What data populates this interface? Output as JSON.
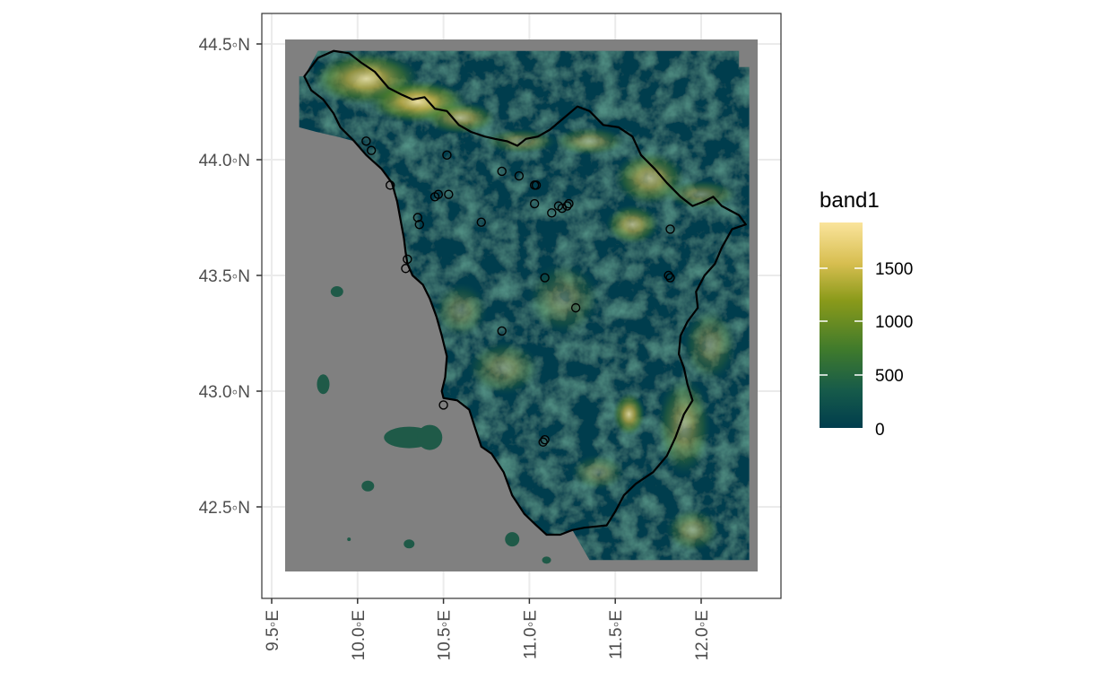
{
  "map": {
    "y_axis": {
      "ticks": [
        {
          "value": 44.5,
          "label": "44.5◦N"
        },
        {
          "value": 44.0,
          "label": "44.0◦N"
        },
        {
          "value": 43.5,
          "label": "43.5◦N"
        },
        {
          "value": 43.0,
          "label": "43.0◦N"
        },
        {
          "value": 42.5,
          "label": "42.5◦N"
        }
      ]
    },
    "x_axis": {
      "ticks": [
        {
          "value": 9.5,
          "label": "9.5◦E"
        },
        {
          "value": 10.0,
          "label": "10.0◦E"
        },
        {
          "value": 10.5,
          "label": "10.5◦E"
        },
        {
          "value": 11.0,
          "label": "11.0◦E"
        },
        {
          "value": 11.5,
          "label": "11.5◦E"
        },
        {
          "value": 12.0,
          "label": "12.0◦E"
        }
      ]
    },
    "legend": {
      "title": "band1",
      "labels": [
        "1500",
        "1000",
        "500",
        "0"
      ],
      "colors": [
        "#fae49c",
        "#d7be50",
        "#8a9a1a",
        "#3f7a2c",
        "#165a4a",
        "#003d4d"
      ]
    },
    "colors": {
      "sea": "#808080",
      "frame": "#333333",
      "grid": "#ebebeb",
      "boundary": "#000000",
      "low": "#003d4d",
      "mid": "#2f7040",
      "high": "#f5e6a8"
    },
    "stations": [
      {
        "lon": 10.05,
        "lat": 44.08
      },
      {
        "lon": 10.08,
        "lat": 44.04
      },
      {
        "lon": 10.19,
        "lat": 43.89
      },
      {
        "lon": 10.47,
        "lat": 43.85
      },
      {
        "lon": 10.45,
        "lat": 43.84
      },
      {
        "lon": 10.53,
        "lat": 43.85
      },
      {
        "lon": 10.52,
        "lat": 44.02
      },
      {
        "lon": 10.35,
        "lat": 43.75
      },
      {
        "lon": 10.36,
        "lat": 43.72
      },
      {
        "lon": 10.72,
        "lat": 43.73
      },
      {
        "lon": 10.84,
        "lat": 43.95
      },
      {
        "lon": 10.94,
        "lat": 43.93
      },
      {
        "lon": 11.03,
        "lat": 43.89
      },
      {
        "lon": 11.04,
        "lat": 43.89
      },
      {
        "lon": 11.03,
        "lat": 43.81
      },
      {
        "lon": 11.13,
        "lat": 43.77
      },
      {
        "lon": 11.17,
        "lat": 43.8
      },
      {
        "lon": 11.19,
        "lat": 43.79
      },
      {
        "lon": 11.22,
        "lat": 43.8
      },
      {
        "lon": 11.23,
        "lat": 43.81
      },
      {
        "lon": 11.09,
        "lat": 43.49
      },
      {
        "lon": 11.27,
        "lat": 43.36
      },
      {
        "lon": 10.84,
        "lat": 43.26
      },
      {
        "lon": 10.29,
        "lat": 43.57
      },
      {
        "lon": 10.28,
        "lat": 43.53
      },
      {
        "lon": 11.82,
        "lat": 43.7
      },
      {
        "lon": 11.81,
        "lat": 43.5
      },
      {
        "lon": 11.82,
        "lat": 43.49
      },
      {
        "lon": 10.5,
        "lat": 42.94
      },
      {
        "lon": 11.09,
        "lat": 42.79
      },
      {
        "lon": 11.08,
        "lat": 42.78
      }
    ],
    "boundary": [
      [
        9.69,
        44.36
      ],
      [
        9.77,
        44.44
      ],
      [
        9.86,
        44.47
      ],
      [
        9.95,
        44.46
      ],
      [
        10.02,
        44.42
      ],
      [
        10.1,
        44.38
      ],
      [
        10.18,
        44.31
      ],
      [
        10.26,
        44.28
      ],
      [
        10.32,
        44.26
      ],
      [
        10.39,
        44.27
      ],
      [
        10.45,
        44.22
      ],
      [
        10.52,
        44.21
      ],
      [
        10.59,
        44.15
      ],
      [
        10.66,
        44.12
      ],
      [
        10.74,
        44.1
      ],
      [
        10.8,
        44.09
      ],
      [
        10.87,
        44.08
      ],
      [
        10.93,
        44.06
      ],
      [
        10.98,
        44.09
      ],
      [
        11.05,
        44.1
      ],
      [
        11.12,
        44.13
      ],
      [
        11.2,
        44.18
      ],
      [
        11.28,
        44.23
      ],
      [
        11.35,
        44.21
      ],
      [
        11.43,
        44.15
      ],
      [
        11.52,
        44.14
      ],
      [
        11.6,
        44.1
      ],
      [
        11.65,
        44.02
      ],
      [
        11.73,
        43.96
      ],
      [
        11.8,
        43.9
      ],
      [
        11.88,
        43.84
      ],
      [
        11.95,
        43.8
      ],
      [
        12.02,
        43.82
      ],
      [
        12.07,
        43.84
      ],
      [
        12.12,
        43.8
      ],
      [
        12.22,
        43.76
      ],
      [
        12.26,
        43.72
      ],
      [
        12.18,
        43.7
      ],
      [
        12.12,
        43.62
      ],
      [
        12.08,
        43.55
      ],
      [
        12.02,
        43.5
      ],
      [
        11.97,
        43.43
      ],
      [
        11.98,
        43.36
      ],
      [
        11.92,
        43.3
      ],
      [
        11.88,
        43.24
      ],
      [
        11.87,
        43.16
      ],
      [
        11.9,
        43.1
      ],
      [
        11.92,
        43.03
      ],
      [
        11.95,
        42.96
      ],
      [
        11.9,
        42.9
      ],
      [
        11.85,
        42.8
      ],
      [
        11.8,
        42.72
      ],
      [
        11.72,
        42.65
      ],
      [
        11.62,
        42.6
      ],
      [
        11.55,
        42.55
      ],
      [
        11.5,
        42.48
      ],
      [
        11.45,
        42.42
      ],
      [
        11.32,
        42.41
      ],
      [
        11.25,
        42.4
      ],
      [
        11.18,
        42.38
      ],
      [
        11.1,
        42.38
      ],
      [
        11.04,
        42.42
      ],
      [
        10.97,
        42.47
      ],
      [
        10.9,
        42.55
      ],
      [
        10.85,
        42.65
      ],
      [
        10.78,
        42.73
      ],
      [
        10.72,
        42.76
      ],
      [
        10.68,
        42.85
      ],
      [
        10.65,
        42.92
      ],
      [
        10.58,
        42.96
      ],
      [
        10.5,
        42.97
      ],
      [
        10.49,
        43.0
      ],
      [
        10.51,
        43.06
      ],
      [
        10.52,
        43.15
      ],
      [
        10.49,
        43.24
      ],
      [
        10.46,
        43.32
      ],
      [
        10.42,
        43.4
      ],
      [
        10.38,
        43.46
      ],
      [
        10.32,
        43.5
      ],
      [
        10.29,
        43.55
      ],
      [
        10.28,
        43.6
      ],
      [
        10.27,
        43.66
      ],
      [
        10.25,
        43.74
      ],
      [
        10.23,
        43.82
      ],
      [
        10.2,
        43.9
      ],
      [
        10.14,
        43.96
      ],
      [
        10.05,
        44.02
      ],
      [
        9.98,
        44.08
      ],
      [
        9.9,
        44.14
      ],
      [
        9.86,
        44.2
      ],
      [
        9.8,
        44.26
      ],
      [
        9.73,
        44.3
      ],
      [
        9.69,
        44.36
      ]
    ]
  }
}
